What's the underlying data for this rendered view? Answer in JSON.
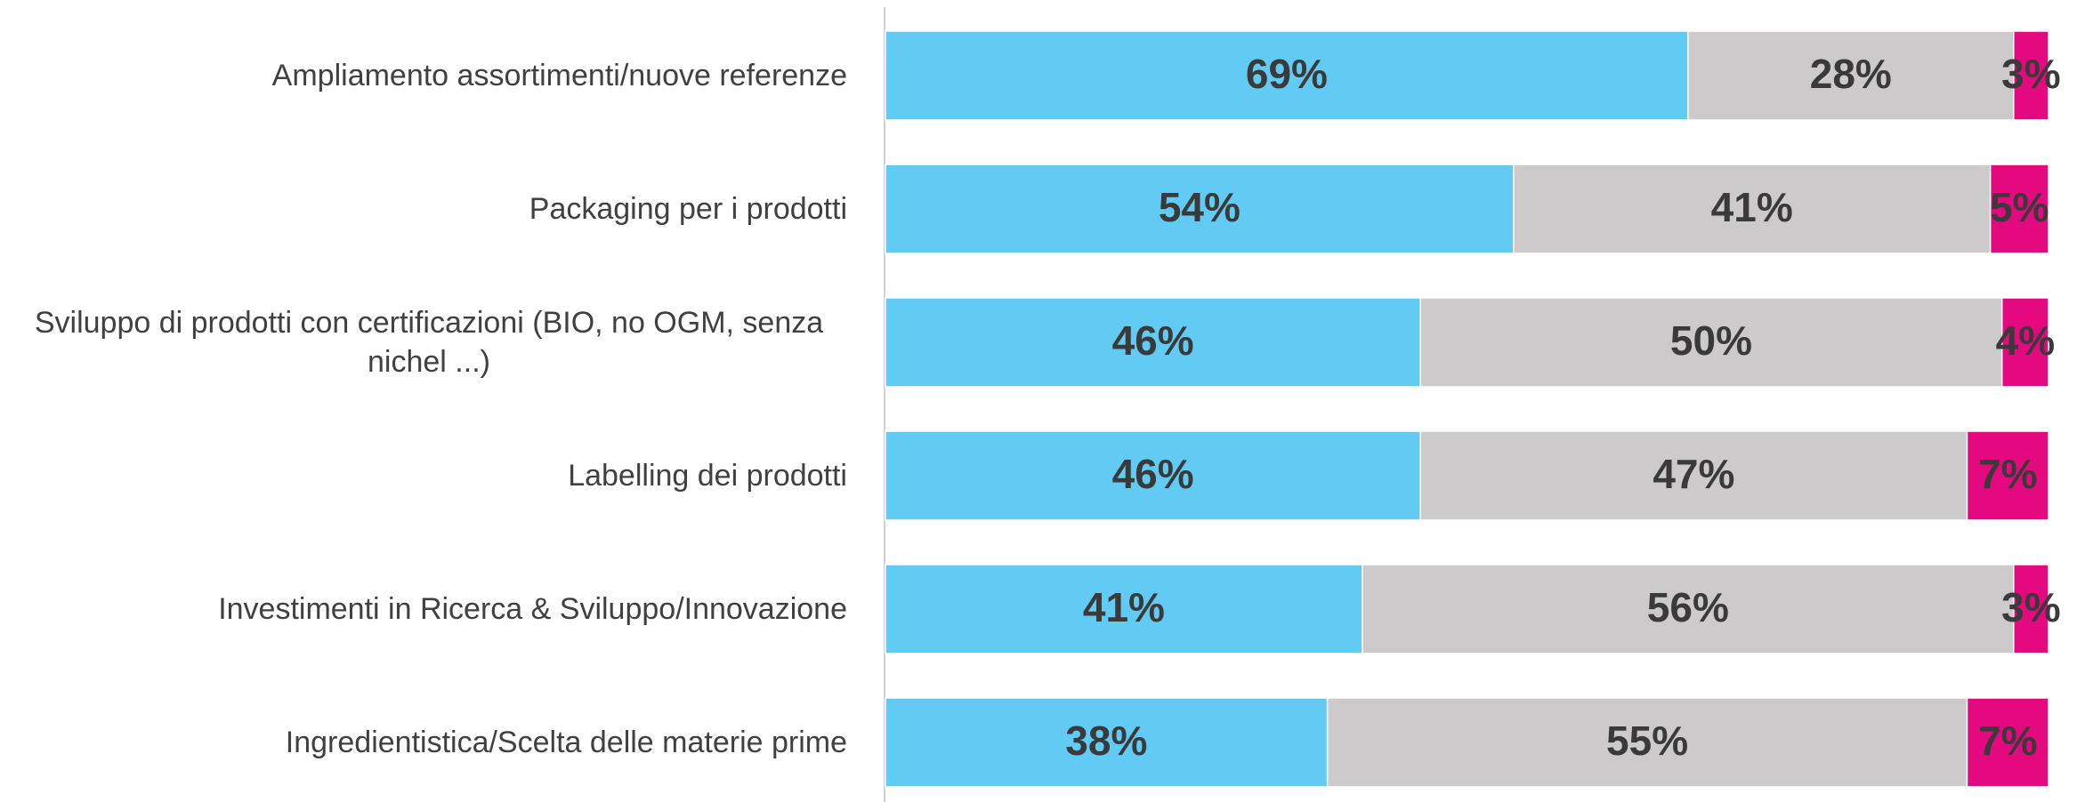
{
  "chart_data": {
    "type": "bar",
    "orientation": "horizontal",
    "stacked": true,
    "categories": [
      "Ampliamento assortimenti/nuove referenze",
      "Packaging per i prodotti",
      "Sviluppo di prodotti con certificazioni (BIO, no OGM, senza nichel ...)",
      "Labelling dei prodotti",
      "Investimenti in Ricerca & Sviluppo/Innovazione",
      "Ingredientistica/Scelta delle materie prime"
    ],
    "series": [
      {
        "color": "#62cbf4",
        "values": [
          69,
          54,
          46,
          46,
          41,
          38
        ],
        "value_labels": [
          "69%",
          "54%",
          "46%",
          "46%",
          "41%",
          "38%"
        ]
      },
      {
        "color": "#cccaca",
        "values": [
          28,
          41,
          50,
          47,
          56,
          55
        ],
        "value_labels": [
          "28%",
          "41%",
          "50%",
          "47%",
          "56%",
          "55%"
        ]
      },
      {
        "color": "#e5097f",
        "values": [
          3,
          5,
          4,
          7,
          3,
          7
        ],
        "value_labels": [
          "3%",
          "5%",
          "4%",
          "7%",
          "3%",
          "7%"
        ]
      }
    ],
    "xlim": [
      0,
      100
    ]
  }
}
